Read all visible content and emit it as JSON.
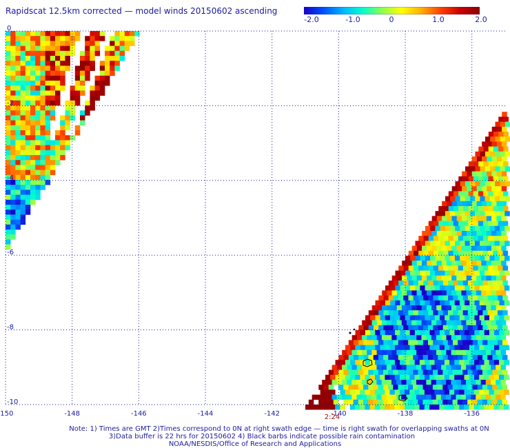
{
  "title": "Rapidscat 12.5km corrected — model winds 20150602 ascending",
  "colorbar": {
    "ticks": [
      "-2.0",
      "-1.0",
      "0",
      "1.0",
      "2.0"
    ],
    "range": [
      -2.0,
      2.0
    ],
    "colors": [
      "#1a00c8",
      "#0050ff",
      "#00b4ff",
      "#00ffd0",
      "#8cff50",
      "#ffff00",
      "#ffb000",
      "#ff4000",
      "#c80000",
      "#900000"
    ]
  },
  "map": {
    "lon_ticks": [
      "-150",
      "-148",
      "-146",
      "-144",
      "-142",
      "-140",
      "-138",
      "-136"
    ],
    "lat_ticks": [
      "0",
      "-2",
      "-4",
      "-6",
      "-8",
      "-10"
    ],
    "lon_range": [
      -150,
      -135
    ],
    "lat_range": [
      -10,
      0
    ],
    "time_label": "2:24",
    "grid": "dotted"
  },
  "footer": {
    "line1": "Note: 1) Times are GMT 2)Times correspond to 0N at right swath edge — time is right swath for overlapping swaths at 0N",
    "line2": "3)Data buffer is 22 hrs for 20150602 4) Black barbs indicate possible rain contamination",
    "line3": "NOAA/NESDIS/Office of Research and Applications"
  }
}
